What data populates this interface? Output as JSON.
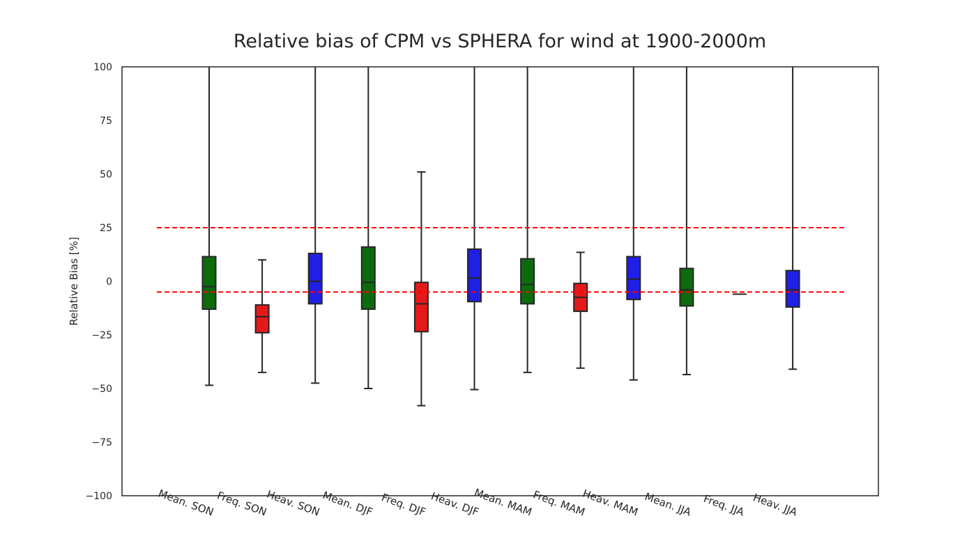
{
  "chart_data": {
    "type": "box",
    "title": "Relative bias of CPM vs SPHERA for wind at 1900-2000m",
    "xlabel": "",
    "ylabel": "Relative Bias [%]",
    "ylim": [
      -100,
      100
    ],
    "yticks": [
      -100,
      -75,
      -50,
      -25,
      0,
      25,
      50,
      75,
      100
    ],
    "ytick_labels": [
      "−100",
      "−75",
      "−50",
      "−25",
      "0",
      "25",
      "50",
      "75",
      "100"
    ],
    "grid": false,
    "reference_lines": [
      {
        "y": 25,
        "color": "#ff0000",
        "style": "dashed"
      },
      {
        "y": -5,
        "color": "#ff0000",
        "style": "dashed"
      }
    ],
    "colors": {
      "Mean": "#0c6b0c",
      "Freq": "#e41a1a",
      "Heav": "#1f1fe6"
    },
    "categories": [
      "Mean. SON",
      "Freq. SON",
      "Heav. SON",
      "Mean. DJF",
      "Freq. DJF",
      "Heav. DJF",
      "Mean. MAM",
      "Freq. MAM",
      "Heav. MAM",
      "Mean. JJA",
      "Freq. JJA",
      "Heav. JJA"
    ],
    "boxes": [
      {
        "label": "Mean. SON",
        "group": "Mean",
        "whislo": -48.5,
        "q1": -13,
        "med": -2.5,
        "q3": 11.5,
        "whishi": 100
      },
      {
        "label": "Freq. SON",
        "group": "Freq",
        "whislo": -42.5,
        "q1": -24,
        "med": -16.5,
        "q3": -11,
        "whishi": 10
      },
      {
        "label": "Heav. SON",
        "group": "Heav",
        "whislo": -47.5,
        "q1": -10.5,
        "med": 0,
        "q3": 13,
        "whishi": 100
      },
      {
        "label": "Mean. DJF",
        "group": "Mean",
        "whislo": -50,
        "q1": -13,
        "med": -0.5,
        "q3": 16,
        "whishi": 100
      },
      {
        "label": "Freq. DJF",
        "group": "Freq",
        "whislo": -58,
        "q1": -23.5,
        "med": -10.5,
        "q3": -0.5,
        "whishi": 51
      },
      {
        "label": "Heav. DJF",
        "group": "Heav",
        "whislo": -50.5,
        "q1": -9.5,
        "med": 1.5,
        "q3": 15,
        "whishi": 100
      },
      {
        "label": "Mean. MAM",
        "group": "Mean",
        "whislo": -42.5,
        "q1": -10.5,
        "med": -1.5,
        "q3": 10.5,
        "whishi": 100
      },
      {
        "label": "Freq. MAM",
        "group": "Freq",
        "whislo": -40.5,
        "q1": -14,
        "med": -7.5,
        "q3": -1,
        "whishi": 13.5
      },
      {
        "label": "Heav. MAM",
        "group": "Heav",
        "whislo": -46,
        "q1": -8.5,
        "med": 1,
        "q3": 11.5,
        "whishi": 100
      },
      {
        "label": "Mean. JJA",
        "group": "Mean",
        "whislo": -43.5,
        "q1": -11.5,
        "med": -4,
        "q3": 6,
        "whishi": 100
      },
      {
        "label": "Freq. JJA",
        "group": "Freq",
        "whislo": -6,
        "q1": -6,
        "med": -6,
        "q3": -6,
        "whishi": -6
      },
      {
        "label": "Heav. JJA",
        "group": "Heav",
        "whislo": -41,
        "q1": -12,
        "med": -4,
        "q3": 5,
        "whishi": 100
      }
    ]
  }
}
